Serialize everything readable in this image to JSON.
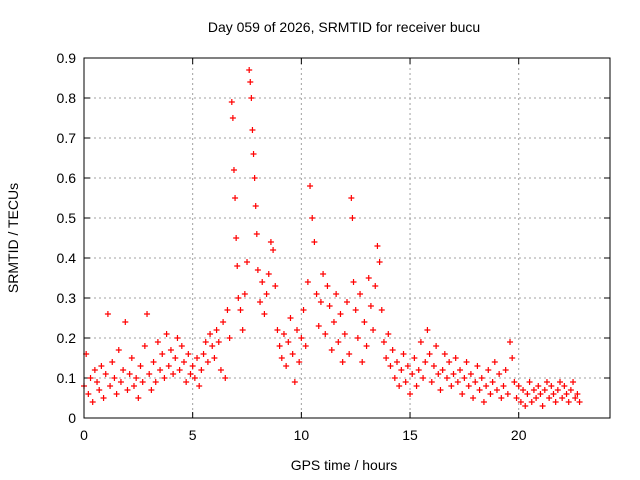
{
  "chart_data": {
    "type": "scatter",
    "title": "Day 059 of 2026, SRMTID for receiver bucu",
    "xlabel": "GPS time / hours",
    "ylabel": "SRMTID / TECUs",
    "xlim": [
      0,
      24.2
    ],
    "ylim": [
      0,
      0.9
    ],
    "x_ticks": [
      0,
      5,
      10,
      15,
      20
    ],
    "y_ticks": [
      0,
      0.1,
      0.2,
      0.3,
      0.4,
      0.5,
      0.6,
      0.7,
      0.8,
      0.9
    ],
    "x_tick_labels": [
      "0",
      "5",
      "10",
      "15",
      "20"
    ],
    "y_tick_labels": [
      "0",
      "0.1",
      "0.2",
      "0.3",
      "0.4",
      "0.5",
      "0.6",
      "0.7",
      "0.8",
      "0.9"
    ],
    "grid": true,
    "marker": "+",
    "series": [
      {
        "name": "SRMTID",
        "color": "#ff0000",
        "points": [
          [
            0.0,
            0.08
          ],
          [
            0.1,
            0.16
          ],
          [
            0.2,
            0.06
          ],
          [
            0.3,
            0.1
          ],
          [
            0.4,
            0.04
          ],
          [
            0.5,
            0.12
          ],
          [
            0.6,
            0.09
          ],
          [
            0.7,
            0.07
          ],
          [
            0.8,
            0.13
          ],
          [
            0.9,
            0.05
          ],
          [
            1.0,
            0.11
          ],
          [
            1.1,
            0.26
          ],
          [
            1.2,
            0.08
          ],
          [
            1.3,
            0.14
          ],
          [
            1.4,
            0.1
          ],
          [
            1.5,
            0.06
          ],
          [
            1.6,
            0.17
          ],
          [
            1.7,
            0.09
          ],
          [
            1.8,
            0.12
          ],
          [
            1.9,
            0.24
          ],
          [
            2.0,
            0.07
          ],
          [
            2.1,
            0.11
          ],
          [
            2.2,
            0.15
          ],
          [
            2.3,
            0.08
          ],
          [
            2.4,
            0.1
          ],
          [
            2.5,
            0.05
          ],
          [
            2.6,
            0.13
          ],
          [
            2.7,
            0.09
          ],
          [
            2.8,
            0.18
          ],
          [
            2.9,
            0.26
          ],
          [
            3.0,
            0.11
          ],
          [
            3.1,
            0.07
          ],
          [
            3.2,
            0.14
          ],
          [
            3.3,
            0.09
          ],
          [
            3.4,
            0.19
          ],
          [
            3.5,
            0.12
          ],
          [
            3.6,
            0.16
          ],
          [
            3.7,
            0.1
          ],
          [
            3.8,
            0.21
          ],
          [
            3.9,
            0.13
          ],
          [
            4.0,
            0.17
          ],
          [
            4.1,
            0.11
          ],
          [
            4.2,
            0.15
          ],
          [
            4.3,
            0.2
          ],
          [
            4.4,
            0.12
          ],
          [
            4.5,
            0.18
          ],
          [
            4.6,
            0.14
          ],
          [
            4.7,
            0.09
          ],
          [
            4.8,
            0.16
          ],
          [
            4.9,
            0.11
          ],
          [
            5.0,
            0.13
          ],
          [
            5.1,
            0.1
          ],
          [
            5.2,
            0.15
          ],
          [
            5.3,
            0.08
          ],
          [
            5.4,
            0.12
          ],
          [
            5.5,
            0.16
          ],
          [
            5.6,
            0.19
          ],
          [
            5.7,
            0.14
          ],
          [
            5.8,
            0.21
          ],
          [
            5.9,
            0.18
          ],
          [
            6.0,
            0.15
          ],
          [
            6.1,
            0.22
          ],
          [
            6.2,
            0.19
          ],
          [
            6.3,
            0.12
          ],
          [
            6.4,
            0.24
          ],
          [
            6.5,
            0.1
          ],
          [
            6.6,
            0.27
          ],
          [
            6.7,
            0.2
          ],
          [
            6.8,
            0.79
          ],
          [
            6.85,
            0.75
          ],
          [
            6.9,
            0.62
          ],
          [
            6.95,
            0.55
          ],
          [
            7.0,
            0.45
          ],
          [
            7.05,
            0.38
          ],
          [
            7.1,
            0.3
          ],
          [
            7.2,
            0.27
          ],
          [
            7.3,
            0.22
          ],
          [
            7.4,
            0.31
          ],
          [
            7.5,
            0.39
          ],
          [
            7.6,
            0.87
          ],
          [
            7.65,
            0.84
          ],
          [
            7.7,
            0.8
          ],
          [
            7.75,
            0.72
          ],
          [
            7.8,
            0.66
          ],
          [
            7.85,
            0.6
          ],
          [
            7.9,
            0.53
          ],
          [
            7.95,
            0.46
          ],
          [
            8.0,
            0.37
          ],
          [
            8.1,
            0.29
          ],
          [
            8.2,
            0.34
          ],
          [
            8.3,
            0.26
          ],
          [
            8.4,
            0.31
          ],
          [
            8.5,
            0.36
          ],
          [
            8.6,
            0.44
          ],
          [
            8.7,
            0.42
          ],
          [
            8.8,
            0.33
          ],
          [
            8.9,
            0.22
          ],
          [
            9.0,
            0.18
          ],
          [
            9.1,
            0.15
          ],
          [
            9.2,
            0.21
          ],
          [
            9.3,
            0.13
          ],
          [
            9.4,
            0.19
          ],
          [
            9.5,
            0.25
          ],
          [
            9.6,
            0.16
          ],
          [
            9.7,
            0.09
          ],
          [
            9.8,
            0.22
          ],
          [
            9.9,
            0.14
          ],
          [
            10.0,
            0.2
          ],
          [
            10.1,
            0.27
          ],
          [
            10.2,
            0.18
          ],
          [
            10.3,
            0.34
          ],
          [
            10.4,
            0.58
          ],
          [
            10.5,
            0.5
          ],
          [
            10.6,
            0.44
          ],
          [
            10.7,
            0.31
          ],
          [
            10.8,
            0.23
          ],
          [
            10.9,
            0.29
          ],
          [
            11.0,
            0.36
          ],
          [
            11.1,
            0.21
          ],
          [
            11.2,
            0.33
          ],
          [
            11.3,
            0.28
          ],
          [
            11.4,
            0.17
          ],
          [
            11.5,
            0.24
          ],
          [
            11.6,
            0.31
          ],
          [
            11.7,
            0.19
          ],
          [
            11.8,
            0.26
          ],
          [
            11.9,
            0.14
          ],
          [
            12.0,
            0.21
          ],
          [
            12.1,
            0.29
          ],
          [
            12.2,
            0.16
          ],
          [
            12.3,
            0.55
          ],
          [
            12.35,
            0.5
          ],
          [
            12.4,
            0.34
          ],
          [
            12.5,
            0.27
          ],
          [
            12.6,
            0.2
          ],
          [
            12.7,
            0.31
          ],
          [
            12.8,
            0.14
          ],
          [
            12.9,
            0.24
          ],
          [
            13.0,
            0.18
          ],
          [
            13.1,
            0.35
          ],
          [
            13.2,
            0.28
          ],
          [
            13.3,
            0.22
          ],
          [
            13.4,
            0.33
          ],
          [
            13.5,
            0.43
          ],
          [
            13.6,
            0.39
          ],
          [
            13.7,
            0.27
          ],
          [
            13.8,
            0.19
          ],
          [
            13.9,
            0.15
          ],
          [
            14.0,
            0.21
          ],
          [
            14.1,
            0.13
          ],
          [
            14.2,
            0.17
          ],
          [
            14.3,
            0.1
          ],
          [
            14.4,
            0.14
          ],
          [
            14.5,
            0.08
          ],
          [
            14.6,
            0.12
          ],
          [
            14.7,
            0.16
          ],
          [
            14.8,
            0.09
          ],
          [
            14.9,
            0.13
          ],
          [
            15.0,
            0.06
          ],
          [
            15.1,
            0.11
          ],
          [
            15.2,
            0.15
          ],
          [
            15.3,
            0.08
          ],
          [
            15.4,
            0.12
          ],
          [
            15.5,
            0.19
          ],
          [
            15.6,
            0.1
          ],
          [
            15.7,
            0.14
          ],
          [
            15.8,
            0.22
          ],
          [
            15.9,
            0.16
          ],
          [
            16.0,
            0.09
          ],
          [
            16.1,
            0.13
          ],
          [
            16.2,
            0.18
          ],
          [
            16.3,
            0.11
          ],
          [
            16.4,
            0.07
          ],
          [
            16.5,
            0.12
          ],
          [
            16.6,
            0.16
          ],
          [
            16.7,
            0.1
          ],
          [
            16.8,
            0.14
          ],
          [
            16.9,
            0.08
          ],
          [
            17.0,
            0.11
          ],
          [
            17.1,
            0.15
          ],
          [
            17.2,
            0.09
          ],
          [
            17.3,
            0.12
          ],
          [
            17.4,
            0.06
          ],
          [
            17.5,
            0.1
          ],
          [
            17.6,
            0.14
          ],
          [
            17.7,
            0.08
          ],
          [
            17.8,
            0.11
          ],
          [
            17.9,
            0.05
          ],
          [
            18.0,
            0.09
          ],
          [
            18.1,
            0.13
          ],
          [
            18.2,
            0.07
          ],
          [
            18.3,
            0.1
          ],
          [
            18.4,
            0.04
          ],
          [
            18.5,
            0.08
          ],
          [
            18.6,
            0.12
          ],
          [
            18.7,
            0.06
          ],
          [
            18.8,
            0.09
          ],
          [
            18.9,
            0.14
          ],
          [
            19.0,
            0.07
          ],
          [
            19.1,
            0.11
          ],
          [
            19.2,
            0.05
          ],
          [
            19.3,
            0.08
          ],
          [
            19.4,
            0.12
          ],
          [
            19.5,
            0.06
          ],
          [
            19.6,
            0.19
          ],
          [
            19.7,
            0.15
          ],
          [
            19.8,
            0.09
          ],
          [
            19.9,
            0.05
          ],
          [
            20.0,
            0.08
          ],
          [
            20.1,
            0.04
          ],
          [
            20.2,
            0.07
          ],
          [
            20.3,
            0.03
          ],
          [
            20.4,
            0.06
          ],
          [
            20.5,
            0.09
          ],
          [
            20.6,
            0.04
          ],
          [
            20.7,
            0.07
          ],
          [
            20.8,
            0.05
          ],
          [
            20.9,
            0.08
          ],
          [
            21.0,
            0.06
          ],
          [
            21.1,
            0.03
          ],
          [
            21.2,
            0.07
          ],
          [
            21.3,
            0.09
          ],
          [
            21.4,
            0.05
          ],
          [
            21.5,
            0.08
          ],
          [
            21.6,
            0.06
          ],
          [
            21.7,
            0.04
          ],
          [
            21.8,
            0.07
          ],
          [
            21.9,
            0.09
          ],
          [
            22.0,
            0.05
          ],
          [
            22.1,
            0.08
          ],
          [
            22.2,
            0.06
          ],
          [
            22.3,
            0.04
          ],
          [
            22.4,
            0.07
          ],
          [
            22.5,
            0.09
          ],
          [
            22.6,
            0.05
          ],
          [
            22.7,
            0.06
          ],
          [
            22.8,
            0.04
          ]
        ]
      }
    ]
  }
}
